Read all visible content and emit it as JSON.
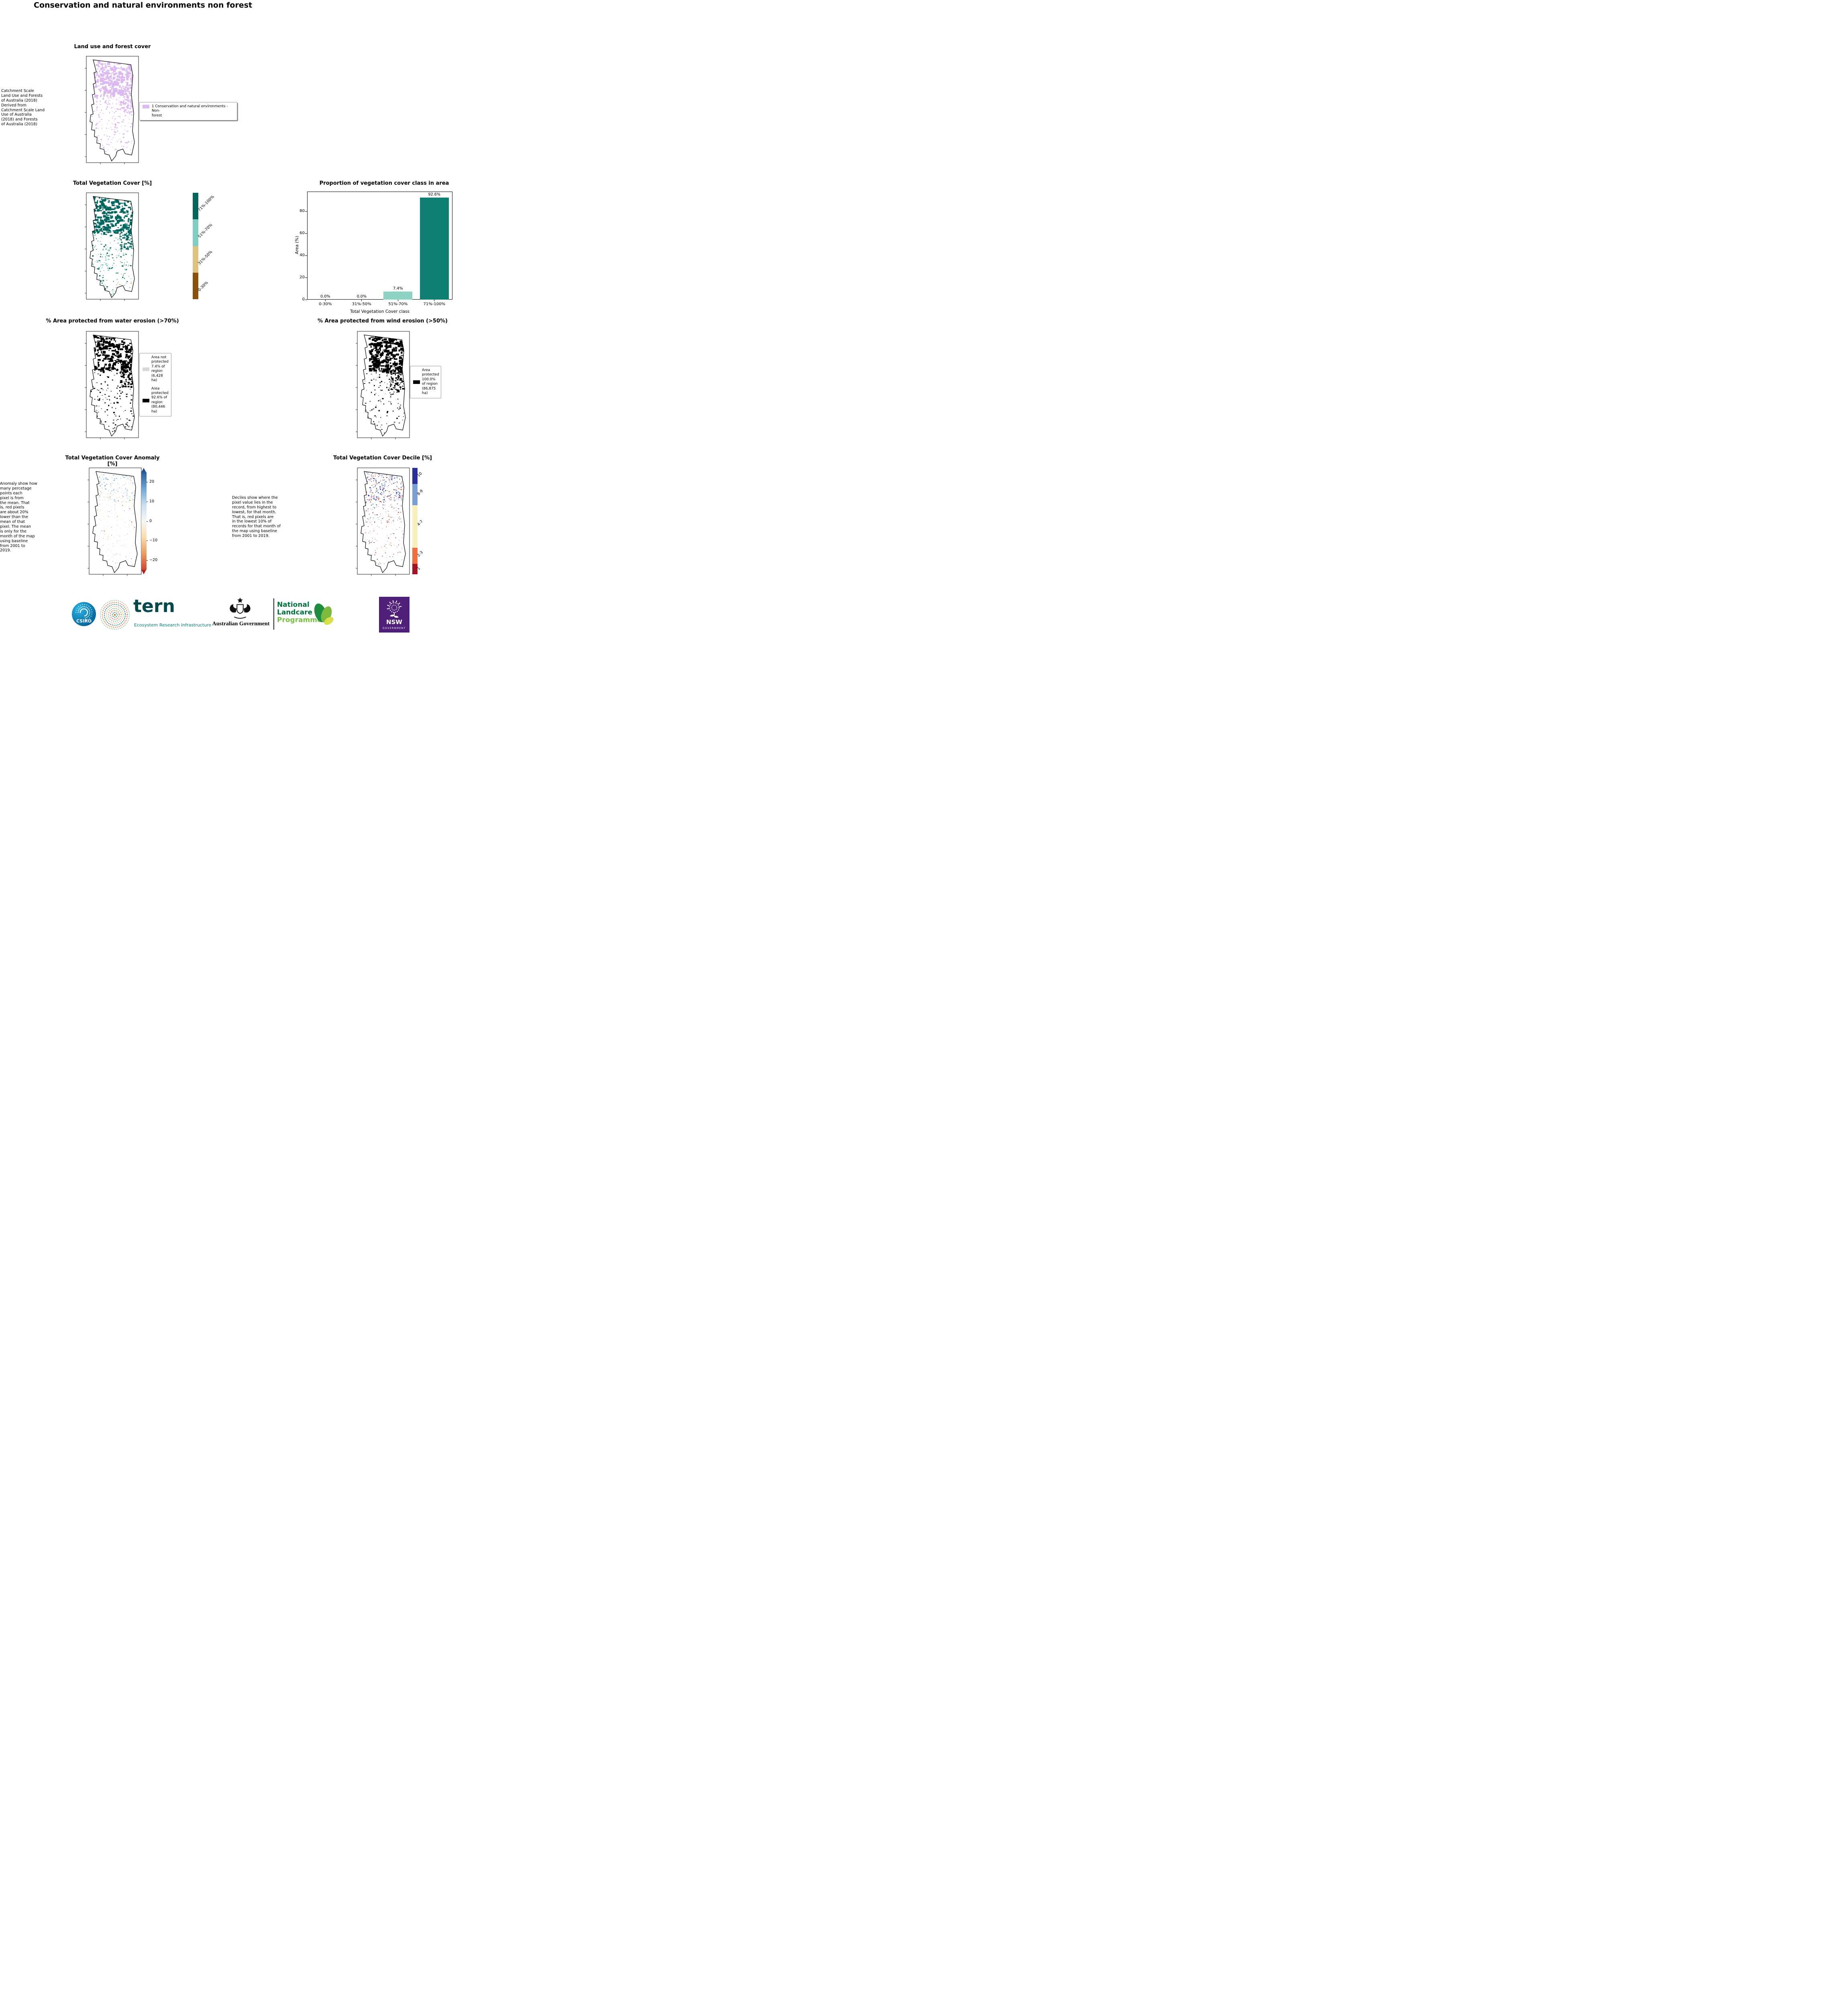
{
  "page_title": "Conservation and natural environments non forest",
  "panels": {
    "landuse": {
      "title": "Land use and forest cover",
      "source_note": "Catchment Scale\nLand Use and Forests\nof Australia (2018)\nDerived from\nCatchment Scale Land\nUse of Australia\n(2018) and Forests\nof Australia (2018)",
      "legend_label": "1 Conservation and natural environments - Non-\nforest",
      "legend_color": "#dcb9ef"
    },
    "vegcover": {
      "title": "Total Vegetation Cover [%]",
      "classes": [
        {
          "label": "71%-100%",
          "color": "#01665e"
        },
        {
          "label": "51%-70%",
          "color": "#80cdc1"
        },
        {
          "label": "31%-50%",
          "color": "#dfc27d"
        },
        {
          "label": "0-30%",
          "color": "#8c510a"
        }
      ]
    },
    "water": {
      "title": "% Area protected from water erosion (>70%)",
      "legend": [
        {
          "label": "Area not protected 7.4% of region (6,428 ha)",
          "color": "#d8d8d8"
        },
        {
          "label": "Area protected 92.6% of region (80,446 ha)",
          "color": "#000000"
        }
      ]
    },
    "wind": {
      "title": "% Area protected from wind erosion (>50%)",
      "legend": [
        {
          "label": "Area protected 100.0% of region (86,875 ha)",
          "color": "#000000"
        }
      ]
    },
    "anomaly": {
      "title": "Total Vegetation Cover Anomaly [%]",
      "note": "Anomaly show how\nmany percetage\npoints each\npixel is from\nthe mean. That\nis, red pixels\nare about 20%\nlower than the\nmean of that\npixel. The mean\nis only for the\nmonth of the map\nusing baseline\nfrom 2001 to\n2019.",
      "colorbar": {
        "ticks": [
          {
            "v": 20,
            "label": "20"
          },
          {
            "v": 10,
            "label": "10"
          },
          {
            "v": 0,
            "label": "0"
          },
          {
            "v": -10,
            "label": "−10"
          },
          {
            "v": -20,
            "label": "−20"
          }
        ],
        "range": [
          -25,
          25
        ],
        "gradient": [
          "#2b5d9c",
          "#6ea4d6",
          "#cadeee",
          "#f7f7f4",
          "#f8dcb0",
          "#e99c62",
          "#cc4733"
        ],
        "arrow_top": "#24518b",
        "arrow_bottom": "#b32121"
      }
    },
    "decile": {
      "title": "Total Vegetation Cover Decile [%]",
      "note": "Deciles show where the\npixel value lies in the\nrecord, from highest to\nlowest, for that month.\nThat is, red pixels are\nin the lowest 10% of\nrecords for that month of\nthe map using baseline\nfrom 2001 to 2019.",
      "classes": [
        {
          "label": "10",
          "color": "#2c2f96",
          "frac": 0.15
        },
        {
          "label": "8-9",
          "color": "#7b9fd3",
          "frac": 0.2
        },
        {
          "label": "4-7",
          "color": "#f8efc0",
          "frac": 0.4
        },
        {
          "label": "2-3",
          "color": "#ee6f42",
          "frac": 0.15
        },
        {
          "label": "1",
          "color": "#a01423",
          "frac": 0.1
        }
      ]
    }
  },
  "chart_data": {
    "type": "bar",
    "title": "Proportion of vegetation cover class in area",
    "categories": [
      "0-30%",
      "31%-50%",
      "51%-70%",
      "71%-100%"
    ],
    "values": [
      0.0,
      0.0,
      7.4,
      92.6
    ],
    "value_labels": [
      "0.0%",
      "0.0%",
      "7.4%",
      "92.6%"
    ],
    "bar_colors": [
      "#8c510a",
      "#dfc27d",
      "#8ed1c5",
      "#0f7f74"
    ],
    "xlabel": "Total Vegetation Cover class",
    "ylabel": "Area (%)",
    "ylim": [
      0,
      98
    ],
    "yticks": [
      0,
      20,
      40,
      60,
      80
    ],
    "grid": false,
    "legend_position": "none"
  },
  "map_palettes": {
    "landuse_main": "#dcb9ef",
    "veg_dark": "#01665e",
    "veg_mid": "#80cdc1",
    "veg_tan": "#dfc27d",
    "protected": "#000000",
    "anom_pos": "#6ea4d6",
    "anom_pos_weak": "#c5dcee",
    "anom_neutral": "#f1e9c2",
    "anom_neg_weak": "#f0c992",
    "anom_neg": "#d2573c",
    "dec_10": "#2c2f96",
    "dec_89": "#7b9fd3",
    "dec_47": "#f3ead0",
    "dec_23": "#ee6f42",
    "dec_1": "#a01423"
  },
  "footer": {
    "csiro_label": "CSIRO",
    "tern_word": "tern",
    "tern_tagline": "Ecosystem Research Infrastructure",
    "aus_gov": "Australian Government",
    "landcare_line1": "National",
    "landcare_line2": "Landcare",
    "landcare_line3": "Programme",
    "nsw": "NSW",
    "nsw_sub": "GOVERNMENT"
  }
}
